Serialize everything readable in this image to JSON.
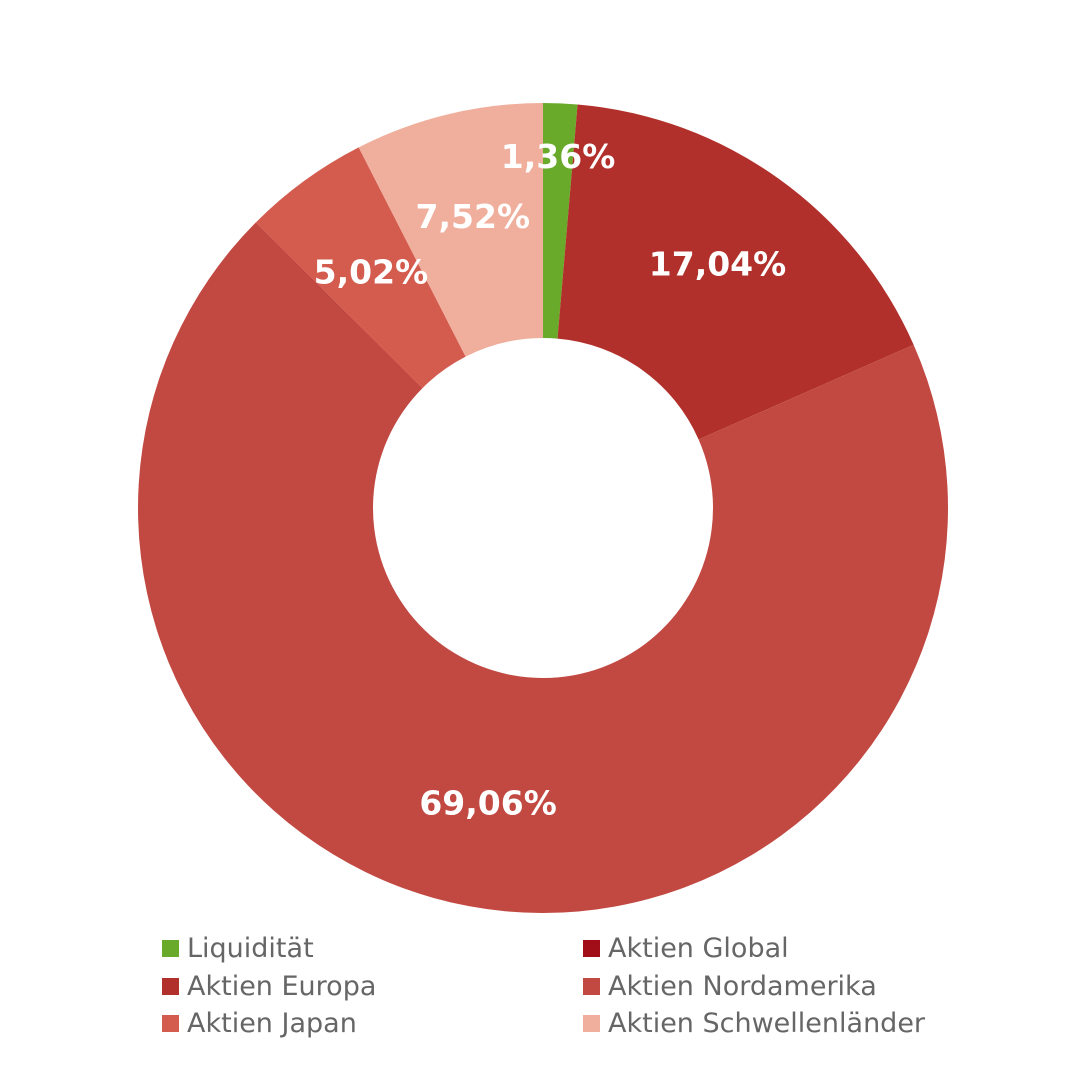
{
  "chart_data": {
    "type": "pie",
    "variant": "donut",
    "title": "",
    "categories": [
      "Liquidität",
      "Aktien Europa",
      "Aktien Global",
      "Aktien Nordamerika",
      "Aktien Japan",
      "Aktien Schwellenländer"
    ],
    "values": [
      1.36,
      17.04,
      0,
      69.06,
      5.02,
      7.52
    ],
    "labels": [
      "1,36%",
      "17,04%",
      "",
      "69,06%",
      "5,02%",
      "7,52%"
    ],
    "colors": [
      "#6aaa2a",
      "#b2302b",
      "#a10e17",
      "#c24842",
      "#d35c4e",
      "#f0ae9c"
    ],
    "legend_position": "bottom",
    "legend": [
      {
        "label": "Liquidität",
        "color": "#6aaa2a"
      },
      {
        "label": "Aktien Global",
        "color": "#a10e17"
      },
      {
        "label": "Aktien Europa",
        "color": "#b2302b"
      },
      {
        "label": "Aktien Nordamerika",
        "color": "#c24842"
      },
      {
        "label": "Aktien Japan",
        "color": "#d35c4e"
      },
      {
        "label": "Aktien Schwellenländer",
        "color": "#f0ae9c"
      }
    ]
  }
}
